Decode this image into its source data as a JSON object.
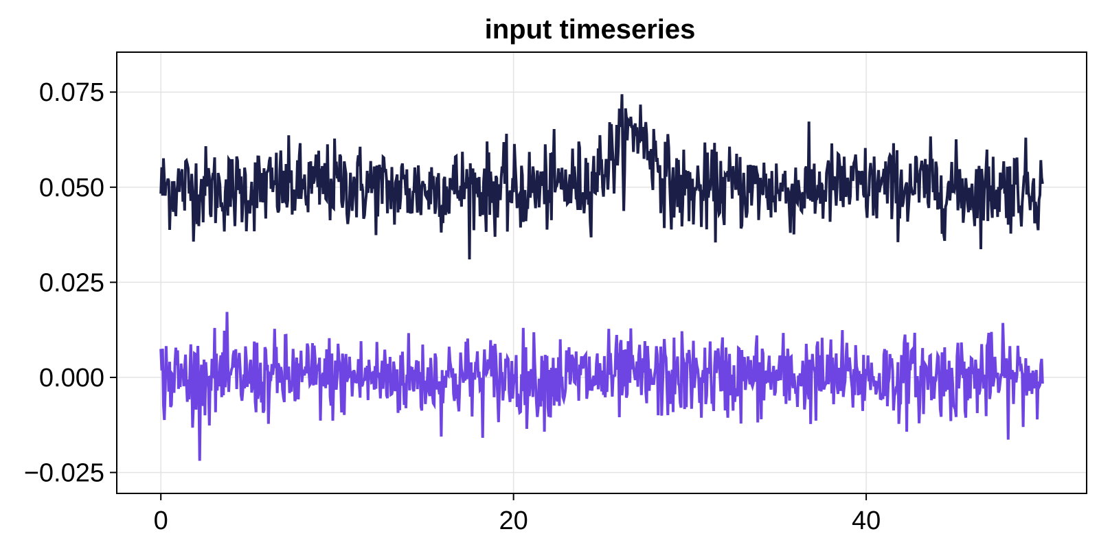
{
  "chart_data": {
    "type": "line",
    "title": "input timeseries",
    "xlabel": "",
    "ylabel": "",
    "xlim": [
      -2.5,
      52.5
    ],
    "ylim": [
      -0.0305,
      0.0855
    ],
    "x_ticks": [
      0,
      20,
      40
    ],
    "x_tick_labels": [
      "0",
      "20",
      "40"
    ],
    "y_ticks": [
      -0.025,
      0.0,
      0.025,
      0.05,
      0.075
    ],
    "y_tick_labels": [
      "−0.025",
      "0.000",
      "0.025",
      "0.050",
      "0.075"
    ],
    "grid": true,
    "legend": "none",
    "x": [
      0.0,
      2.0,
      4.0,
      6.0,
      8.0,
      10.0,
      12.0,
      14.0,
      16.0,
      18.0,
      20.0,
      22.0,
      24.0,
      25.0,
      26.0,
      27.0,
      28.0,
      29.0,
      30.0,
      31.0,
      32.0,
      34.0,
      36.0,
      38.0,
      40.0,
      42.0,
      44.0,
      46.0,
      48.0,
      50.0
    ],
    "series": [
      {
        "color": "#1b1f47",
        "noise_amplitude": 0.012,
        "values": [
          0.05,
          0.05,
          0.049,
          0.05,
          0.05,
          0.051,
          0.05,
          0.049,
          0.05,
          0.05,
          0.049,
          0.05,
          0.051,
          0.055,
          0.061,
          0.066,
          0.058,
          0.05,
          0.049,
          0.049,
          0.05,
          0.05,
          0.049,
          0.05,
          0.05,
          0.05,
          0.05,
          0.049,
          0.05,
          0.05
        ]
      },
      {
        "color": "#6e44e2",
        "noise_amplitude": 0.012,
        "values": [
          0.0,
          0.0,
          0.0,
          0.0,
          0.0,
          0.0,
          0.0,
          0.0,
          0.0,
          0.0,
          0.0,
          0.0,
          0.0,
          0.0,
          0.0,
          0.0,
          0.0,
          0.0,
          0.0,
          0.0,
          0.0,
          0.0,
          0.0,
          0.0,
          0.0,
          0.0,
          0.0,
          0.0,
          0.0,
          0.0
        ]
      }
    ]
  }
}
